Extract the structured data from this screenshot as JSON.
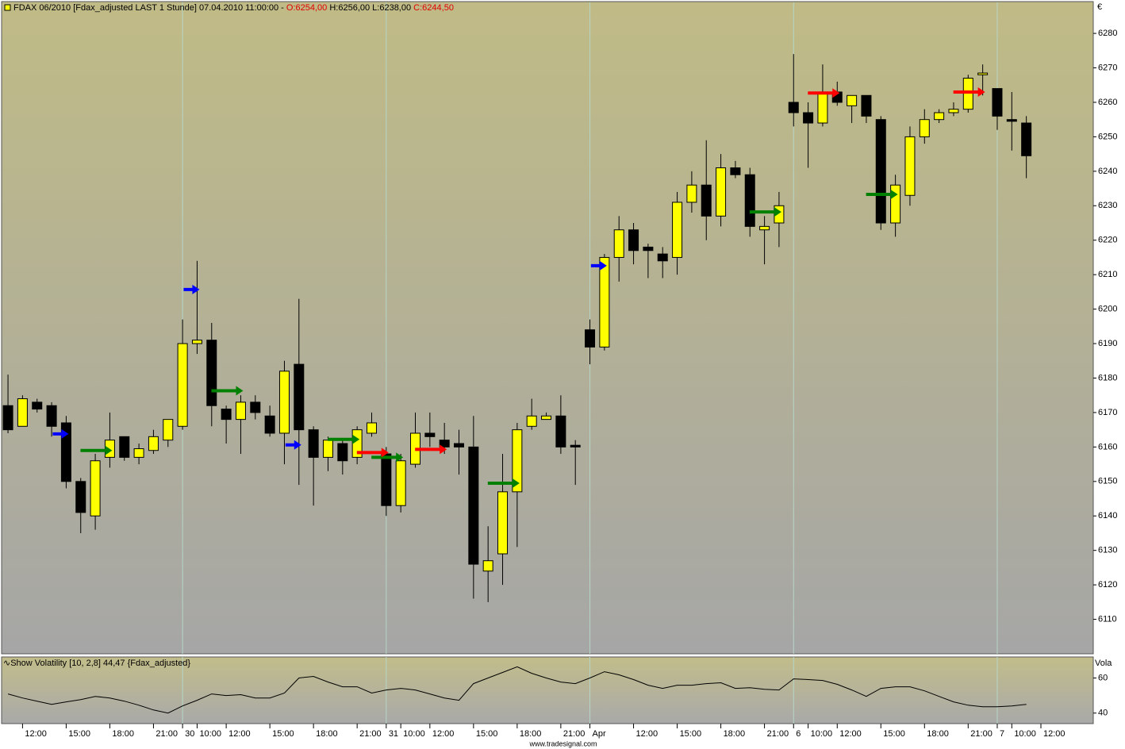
{
  "header": {
    "instrument": "FDAX 06/2010 [Fdax_adjusted LAST 1 Stunde] 07.04.2010 11:00:00 -",
    "open": "O:6254,00",
    "high_low": "H:6256,00 L:6238,00",
    "close": "C:6244,50"
  },
  "footer": "www.tradesignal.com",
  "chart_data": [
    {
      "type": "candlestick",
      "y_axis_label": "€",
      "up_color": "#ffff00",
      "down_color": "#000000",
      "xlim": [
        -0.44,
        74.6
      ],
      "ylim": [
        6100,
        6289
      ],
      "yticks": [
        6110,
        6120,
        6130,
        6140,
        6150,
        6160,
        6170,
        6180,
        6190,
        6200,
        6210,
        6220,
        6230,
        6240,
        6250,
        6260,
        6270,
        6280
      ],
      "open": [
        6172,
        6166,
        6173,
        6172,
        6167,
        6150,
        6140,
        6157,
        6163,
        6157,
        6159,
        6162,
        6166,
        6190,
        6191,
        6171,
        6168,
        6173,
        6169,
        6164,
        6184,
        6165,
        6157,
        6161,
        6157,
        6164,
        6158,
        6143,
        6155,
        6164,
        6162,
        6161,
        6160,
        6124,
        6129,
        6147,
        6166,
        6168,
        6169,
        6160.5,
        6194,
        6189,
        6215,
        6223,
        6218,
        6216,
        6215,
        6231,
        6236,
        6227,
        6241,
        6239,
        6223,
        6225,
        6260,
        6257,
        6254,
        6263,
        6259,
        6262,
        6255,
        6225,
        6233,
        6250,
        6255,
        6257,
        6258,
        6268,
        6264,
        6255,
        6254
      ],
      "high": [
        6181,
        6175,
        6174,
        6173,
        6169,
        6151,
        6158,
        6170,
        6163,
        6161,
        6165,
        6168,
        6197,
        6214,
        6196,
        6172,
        6175,
        6175,
        6172,
        6185,
        6203,
        6166,
        6163,
        6162,
        6166,
        6170,
        6160,
        6158,
        6170,
        6170,
        6167,
        6165,
        6169,
        6137,
        6158,
        6167,
        6174,
        6170,
        6175,
        6162,
        6197,
        6216,
        6227,
        6225,
        6219,
        6218,
        6234,
        6240,
        6249,
        6245,
        6243,
        6241,
        6227,
        6234,
        6274,
        6260,
        6271,
        6266,
        6262,
        6262,
        6256,
        6239,
        6253,
        6258,
        6258,
        6260,
        6268,
        6271,
        6264,
        6263,
        6256
      ],
      "low": [
        6164,
        6166,
        6170,
        6163,
        6148,
        6135,
        6136,
        6154,
        6156,
        6155,
        6158,
        6160,
        6165,
        6187,
        6166,
        6161,
        6158,
        6168,
        6163,
        6155,
        6149,
        6143,
        6153,
        6152,
        6155,
        6163,
        6140,
        6141,
        6154,
        6160,
        6158,
        6152,
        6116,
        6115,
        6120,
        6131,
        6165,
        6168,
        6158,
        6149,
        6184,
        6188,
        6208,
        6213,
        6209,
        6209,
        6210,
        6228,
        6220,
        6224,
        6238,
        6221,
        6213,
        6218,
        6253,
        6241,
        6253,
        6259,
        6254,
        6254,
        6223,
        6221,
        6230,
        6248,
        6254,
        6256,
        6257,
        6262,
        6252,
        6246,
        6238
      ],
      "close": [
        6165,
        6174,
        6171,
        6166,
        6150,
        6141,
        6156,
        6162,
        6157,
        6159.5,
        6163,
        6168,
        6190,
        6191,
        6172,
        6168,
        6173,
        6170,
        6164,
        6182,
        6165,
        6157,
        6162,
        6156,
        6165,
        6167,
        6143,
        6156,
        6164,
        6163,
        6160,
        6160,
        6126,
        6127,
        6147,
        6165,
        6169,
        6169,
        6160,
        6160,
        6189,
        6215,
        6223,
        6217,
        6217,
        6214,
        6231,
        6236,
        6227,
        6241,
        6239,
        6224,
        6224,
        6230,
        6257,
        6254,
        6263,
        6260,
        6262,
        6256,
        6225,
        6236,
        6250,
        6255,
        6257,
        6258,
        6267,
        6268.5,
        6256,
        6254.5,
        6244.5
      ],
      "signals": [
        {
          "color": "#0000ff",
          "x": [
            4,
            13,
            20,
            41
          ],
          "values": [
            6163.8,
            6205.7,
            6160.6,
            6212.6
          ]
        },
        {
          "color": "#008000",
          "x": [
            7,
            16,
            24,
            27,
            35,
            53,
            61
          ],
          "values": [
            6159,
            6176.3,
            6162.2,
            6157,
            6149.5,
            6228.2,
            6233.3
          ]
        },
        {
          "color": "#ff0000",
          "x": [
            26,
            30,
            57,
            67
          ],
          "values": [
            6158.4,
            6159.3,
            6262.7,
            6263
          ]
        }
      ]
    },
    {
      "type": "line",
      "title": "Show Volatility [10, 2,8] 44,47 {Fdax_adjusted}",
      "y_axis_label": "Vola",
      "color": "#000000",
      "xlim": [
        -0.44,
        74.6
      ],
      "ylim": [
        34,
        72
      ],
      "yticks": [
        40,
        60
      ],
      "values": [
        50.9,
        48.6,
        46.8,
        45,
        46.4,
        47.7,
        49.5,
        48.6,
        46.8,
        44.5,
        41.8,
        40,
        44.1,
        47.3,
        50.9,
        50,
        50.5,
        48.6,
        48.6,
        51.4,
        60,
        60.9,
        57.7,
        55,
        55,
        51.4,
        53.2,
        54.1,
        53.2,
        50.9,
        48.6,
        47.3,
        56.8,
        60,
        63.2,
        66.4,
        62.7,
        60,
        57.7,
        56.8,
        60,
        63.6,
        61.8,
        59.1,
        55.9,
        54.1,
        55.9,
        55.9,
        56.8,
        57.3,
        54.1,
        54.5,
        53.6,
        53.2,
        59.5,
        59.1,
        58.6,
        56.4,
        53.2,
        49.5,
        54.1,
        55,
        55,
        52.7,
        49.5,
        46.4,
        44.5,
        43.6,
        43.6,
        44.1,
        45
      ],
      "xticks": [
        {
          "value": 1,
          "label": "12:00"
        },
        {
          "value": 4,
          "label": "15:00"
        },
        {
          "value": 7,
          "label": "18:00"
        },
        {
          "value": 10,
          "label": "21:00"
        },
        {
          "value": 13,
          "label": "10:00"
        },
        {
          "value": 15,
          "label": "12:00"
        },
        {
          "value": 18,
          "label": "15:00"
        },
        {
          "value": 21,
          "label": "18:00"
        },
        {
          "value": 24,
          "label": "21:00"
        },
        {
          "value": 27,
          "label": "10:00"
        },
        {
          "value": 29,
          "label": "12:00"
        },
        {
          "value": 32,
          "label": "15:00"
        },
        {
          "value": 35,
          "label": "18:00"
        },
        {
          "value": 38,
          "label": "21:00"
        },
        {
          "value": 43,
          "label": "12:00"
        },
        {
          "value": 46,
          "label": "15:00"
        },
        {
          "value": 49,
          "label": "18:00"
        },
        {
          "value": 52,
          "label": "21:00"
        },
        {
          "value": 55,
          "label": "10:00"
        },
        {
          "value": 57,
          "label": "12:00"
        },
        {
          "value": 60,
          "label": "15:00"
        },
        {
          "value": 63,
          "label": "18:00"
        },
        {
          "value": 66,
          "label": "21:00"
        },
        {
          "value": 69,
          "label": "10:00"
        },
        {
          "value": 71,
          "label": "12:00"
        }
      ],
      "day_ticks": [
        {
          "value": 12,
          "label": "30"
        },
        {
          "value": 26,
          "label": "31"
        },
        {
          "value": 40,
          "label": "Apr"
        },
        {
          "value": 54,
          "label": "6"
        },
        {
          "value": 68,
          "label": "7"
        }
      ]
    }
  ]
}
